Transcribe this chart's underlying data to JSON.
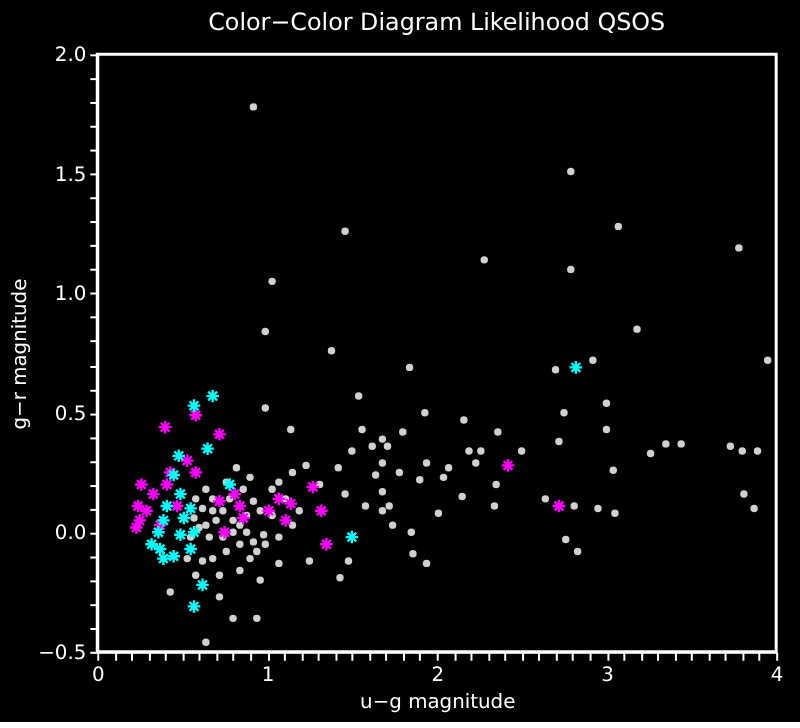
{
  "chart_data": {
    "type": "scatter",
    "title": "Color−Color Diagram Likelihood QSOS",
    "xlabel": "u−g magnitude",
    "ylabel": "g−r magnitude",
    "xlim": [
      0,
      4
    ],
    "ylim": [
      -0.5,
      2.0
    ],
    "xticks": [
      0,
      {
        "value": 0.1,
        "label": null
      },
      {
        "value": 0.2,
        "label": null
      },
      {
        "value": 0.3,
        "label": null
      },
      {
        "value": 0.4,
        "label": null
      },
      {
        "value": 0.5,
        "label": null
      },
      {
        "value": 0.6,
        "label": null
      },
      {
        "value": 0.7,
        "label": null
      },
      {
        "value": 0.8,
        "label": null
      },
      {
        "value": 0.9,
        "label": null
      },
      1,
      {
        "value": 1.1,
        "label": null
      },
      {
        "value": 1.2,
        "label": null
      },
      {
        "value": 1.3,
        "label": null
      },
      {
        "value": 1.4,
        "label": null
      },
      {
        "value": 1.5,
        "label": null
      },
      {
        "value": 1.6,
        "label": null
      },
      {
        "value": 1.7,
        "label": null
      },
      {
        "value": 1.8,
        "label": null
      },
      {
        "value": 1.9,
        "label": null
      },
      2,
      {
        "value": 2.1,
        "label": null
      },
      {
        "value": 2.2,
        "label": null
      },
      {
        "value": 2.3,
        "label": null
      },
      {
        "value": 2.4,
        "label": null
      },
      {
        "value": 2.5,
        "label": null
      },
      {
        "value": 2.6,
        "label": null
      },
      {
        "value": 2.7,
        "label": null
      },
      {
        "value": 2.8,
        "label": null
      },
      {
        "value": 2.9,
        "label": null
      },
      3,
      {
        "value": 3.1,
        "label": null
      },
      {
        "value": 3.2,
        "label": null
      },
      {
        "value": 3.3,
        "label": null
      },
      {
        "value": 3.4,
        "label": null
      },
      {
        "value": 3.5,
        "label": null
      },
      {
        "value": 3.6,
        "label": null
      },
      {
        "value": 3.7,
        "label": null
      },
      {
        "value": 3.8,
        "label": null
      },
      {
        "value": 3.9,
        "label": null
      },
      4
    ],
    "yticks": [
      {
        "value": -0.5,
        "label": "−0.5"
      },
      {
        "value": -0.4,
        "label": null
      },
      {
        "value": -0.3,
        "label": null
      },
      {
        "value": -0.2,
        "label": null
      },
      {
        "value": -0.1,
        "label": null
      },
      {
        "value": 0,
        "label": "0.0"
      },
      {
        "value": 0.1,
        "label": null
      },
      {
        "value": 0.2,
        "label": null
      },
      {
        "value": 0.3,
        "label": null
      },
      {
        "value": 0.4,
        "label": null
      },
      0.5,
      {
        "value": 0.6,
        "label": null
      },
      {
        "value": 0.7,
        "label": null
      },
      {
        "value": 0.8,
        "label": null
      },
      {
        "value": 0.9,
        "label": null
      },
      {
        "value": 1.0,
        "label": "1.0"
      },
      {
        "value": 1.1,
        "label": null
      },
      {
        "value": 1.2,
        "label": null
      },
      {
        "value": 1.3,
        "label": null
      },
      {
        "value": 1.4,
        "label": null
      },
      1.5,
      {
        "value": 1.6,
        "label": null
      },
      {
        "value": 1.7,
        "label": null
      },
      {
        "value": 1.8,
        "label": null
      },
      {
        "value": 1.9,
        "label": null
      },
      {
        "value": 2.0,
        "label": "2.0"
      }
    ],
    "grid": false,
    "series": [
      {
        "color": "#d0d0d0",
        "marker": "circle",
        "x": [
          0.92,
          1.46,
          1.03,
          0.99,
          2.28,
          2.79,
          2.79,
          3.07,
          3.78,
          3.18,
          1.84,
          1.93,
          2.16,
          2.75,
          3.0,
          2.7,
          2.92,
          3.95,
          3.0,
          2.36,
          3.26,
          3.35,
          3.44,
          3.73,
          3.8,
          3.89,
          3.81,
          3.87,
          2.72,
          3.04,
          2.5,
          2.64,
          2.81,
          2.95,
          3.05,
          2.76,
          2.83,
          2.26,
          2.19,
          2.23,
          2.35,
          2.34,
          2.15,
          2.01,
          1.94,
          1.9,
          2.04,
          2.07,
          1.72,
          1.86,
          1.94,
          1.85,
          1.8,
          1.68,
          1.68,
          1.78,
          1.68,
          1.38,
          1.54,
          0.99,
          1.14,
          1.56,
          1.62,
          1.71,
          1.5,
          1.42,
          1.64,
          1.23,
          1.31,
          1.46,
          1.58,
          1.68,
          1.74,
          1.15,
          1.25,
          1.48,
          1.43,
          1.07,
          0.84,
          0.96,
          0.94,
          0.8,
          0.72,
          0.43,
          0.64,
          0.68,
          0.74,
          0.8,
          0.88,
          0.92,
          0.98,
          0.99,
          0.94,
          0.84,
          0.76,
          0.68,
          0.62,
          0.66,
          0.6,
          0.7,
          0.62,
          0.58,
          0.88,
          0.96,
          0.92,
          0.86,
          0.76,
          0.82,
          0.9,
          1.03,
          1.03,
          1.07,
          0.74,
          0.8,
          0.72,
          0.53,
          0.55,
          0.57,
          0.64,
          0.68,
          0.78,
          0.84,
          0.9,
          0.58,
          1.11,
          1.19,
          1.07,
          1.15,
          0.64
        ],
        "values": [
          1.78,
          1.26,
          1.05,
          0.84,
          1.14,
          1.51,
          1.1,
          1.28,
          1.19,
          0.85,
          0.69,
          0.5,
          0.47,
          0.5,
          0.54,
          0.68,
          0.72,
          0.72,
          0.43,
          0.42,
          0.33,
          0.37,
          0.37,
          0.36,
          0.34,
          0.34,
          0.16,
          0.1,
          0.38,
          0.26,
          0.34,
          0.14,
          0.11,
          0.1,
          0.08,
          -0.03,
          -0.08,
          0.34,
          0.34,
          0.29,
          0.2,
          0.11,
          0.15,
          0.08,
          0.29,
          0.22,
          0.23,
          0.27,
          0.11,
          -0.09,
          -0.13,
          0.0,
          0.42,
          0.39,
          0.29,
          0.25,
          0.17,
          0.76,
          0.57,
          0.52,
          0.43,
          0.43,
          0.36,
          0.36,
          0.34,
          0.27,
          0.24,
          0.28,
          0.2,
          0.16,
          0.11,
          0.09,
          0.03,
          0.03,
          -0.12,
          -0.12,
          -0.19,
          -0.13,
          -0.16,
          -0.2,
          -0.36,
          -0.36,
          -0.27,
          -0.25,
          0.18,
          0.14,
          0.09,
          0.05,
          0.0,
          -0.04,
          -0.01,
          -0.05,
          -0.08,
          -0.05,
          -0.08,
          -0.11,
          -0.12,
          -0.02,
          0.02,
          0.05,
          0.1,
          0.14,
          0.07,
          0.09,
          0.13,
          0.18,
          0.21,
          0.27,
          0.23,
          0.18,
          0.07,
          -0.02,
          -0.02,
          0.0,
          -0.18,
          -0.11,
          -0.02,
          0.06,
          0.03,
          0.09,
          0.14,
          0.03,
          -0.11,
          -0.18,
          0.14,
          0.09,
          0.21,
          0.25,
          -0.46
        ]
      },
      {
        "color": "#ff00ff",
        "marker": "cross",
        "x": [
          0.58,
          0.4,
          0.72,
          0.53,
          0.58,
          0.43,
          0.26,
          0.41,
          0.33,
          0.24,
          0.29,
          0.25,
          0.23,
          0.47,
          0.81,
          0.84,
          0.72,
          0.86,
          1.07,
          1.14,
          1.01,
          1.11,
          1.27,
          1.32,
          1.35,
          0.75,
          0.37,
          2.42,
          2.72
        ],
        "values": [
          0.49,
          0.44,
          0.41,
          0.3,
          0.25,
          0.25,
          0.2,
          0.2,
          0.16,
          0.11,
          0.09,
          0.05,
          0.02,
          0.11,
          0.16,
          0.11,
          0.13,
          0.06,
          0.14,
          0.12,
          0.09,
          0.05,
          0.19,
          0.09,
          -0.05,
          0.0,
          0.03,
          0.28,
          0.11
        ]
      },
      {
        "color": "#00ffff",
        "marker": "cross",
        "x": [
          0.68,
          0.57,
          0.65,
          0.48,
          0.45,
          0.78,
          0.49,
          0.41,
          0.55,
          0.39,
          0.51,
          0.36,
          0.49,
          0.57,
          0.32,
          0.37,
          0.55,
          0.39,
          0.45,
          0.62,
          0.57,
          1.5,
          2.82
        ],
        "values": [
          0.57,
          0.53,
          0.35,
          0.32,
          0.24,
          0.2,
          0.16,
          0.11,
          0.1,
          0.05,
          0.06,
          0.0,
          -0.01,
          0.0,
          -0.05,
          -0.07,
          -0.07,
          -0.11,
          -0.1,
          -0.22,
          -0.31,
          -0.02,
          0.69
        ]
      }
    ]
  }
}
